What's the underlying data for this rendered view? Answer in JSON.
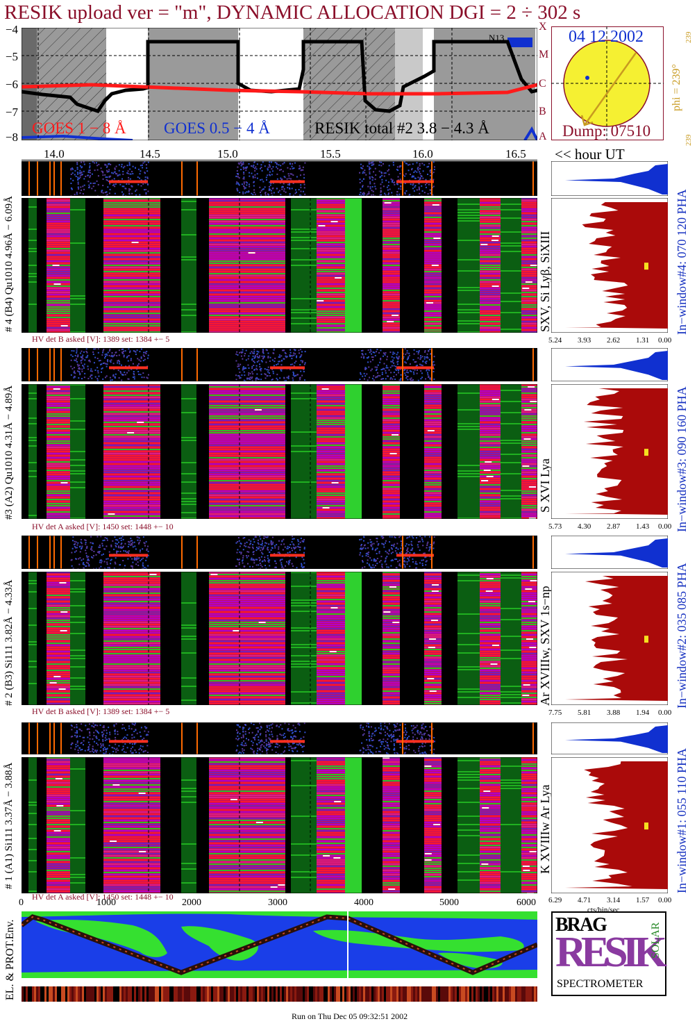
{
  "header": {
    "title": "RESIK upload ver = \"m\", DYNAMIC ALLOCATION  DGI =   2 ÷ 302 s",
    "date": "04 12 2002",
    "dump": "Dump: 07510",
    "phi_label": "phi = 239°",
    "phi_small_top": "239",
    "phi_small_bottom": "239",
    "noaa_label": "N13"
  },
  "goes_panel": {
    "y_ticks": [
      "−4",
      "−5",
      "−6",
      "−7",
      "−8"
    ],
    "class_letters": [
      "X",
      "M",
      "C",
      "B",
      "A"
    ],
    "legend": {
      "long": "GOES 1 − 8 Å",
      "short": "GOES 0.5 − 4 Å",
      "resik": "RESIK total #2  3.8 − 4.3 Å"
    },
    "colors": {
      "long": "#ff1a1a",
      "short": "#1030d0",
      "resik": "#000000"
    }
  },
  "time_axis": {
    "ticks": [
      "14.0",
      "14.5",
      "15.0",
      "15.5",
      "16.0",
      "16.5"
    ],
    "unit_label": "<< hour UT"
  },
  "channel_axis": {
    "ticks": [
      "0",
      "1000",
      "2000",
      "3000",
      "4000",
      "5000",
      "6000"
    ]
  },
  "detectors": [
    {
      "id": "d4",
      "side_label": "# 4 (B4) Qu1010 4.96Å − 6.09Å",
      "line_label": "SXV, Si Lyβ, SiXIII",
      "window_label": "In−window#4:  070 120 PHA",
      "hv_text": "HV det B asked [V]:  1389 set:  1384 +−   5",
      "pha_ticks": [
        "5.24",
        "3.93",
        "2.62",
        "1.31",
        "0.00"
      ]
    },
    {
      "id": "d3",
      "side_label": "#3 (A2) Qu1010  4.31Å − 4.89Å",
      "line_label": "S XVI Lya",
      "window_label": "In−window#3:  090 160 PHA",
      "hv_text": "HV det A asked [V]:  1450 set:  1448 +−   10",
      "pha_ticks": [
        "5.73",
        "4.30",
        "2.87",
        "1.43",
        "0.00"
      ]
    },
    {
      "id": "d2",
      "side_label": "# 2 (B3) Si111  3.82Å − 4.33Å",
      "line_label": "Ar XVIIIw,  SXV 1s−np",
      "window_label": "In−window#2:  035 085 PHA",
      "hv_text": "HV det B asked [V]:  1389 set:  1384 +−   5",
      "pha_ticks": [
        "7.75",
        "5.81",
        "3.88",
        "1.94",
        "0.00"
      ]
    },
    {
      "id": "d1",
      "side_label": "# 1 (A1) Si111  3.37Å − 3.88Å",
      "line_label": "K XVIIIw  Ar Lya",
      "window_label": "In−window#1:  055 110 PHA",
      "hv_text": "HV det A asked [V]:  1450 set:  1448 +−   10",
      "pha_ticks": [
        "6.29",
        "4.71",
        "3.14",
        "1.57",
        "0.00"
      ]
    }
  ],
  "pha_unit": "cts/bin/sec",
  "environment": {
    "label": "EL. & PROT.Env."
  },
  "logo": {
    "top_left": "BRAG",
    "main": "RESIK",
    "right": "SOLAR",
    "bottom": "SPECTROMETER"
  },
  "footer": {
    "run_text": "Run on Thu Dec 05 09:32:51 2002"
  }
}
